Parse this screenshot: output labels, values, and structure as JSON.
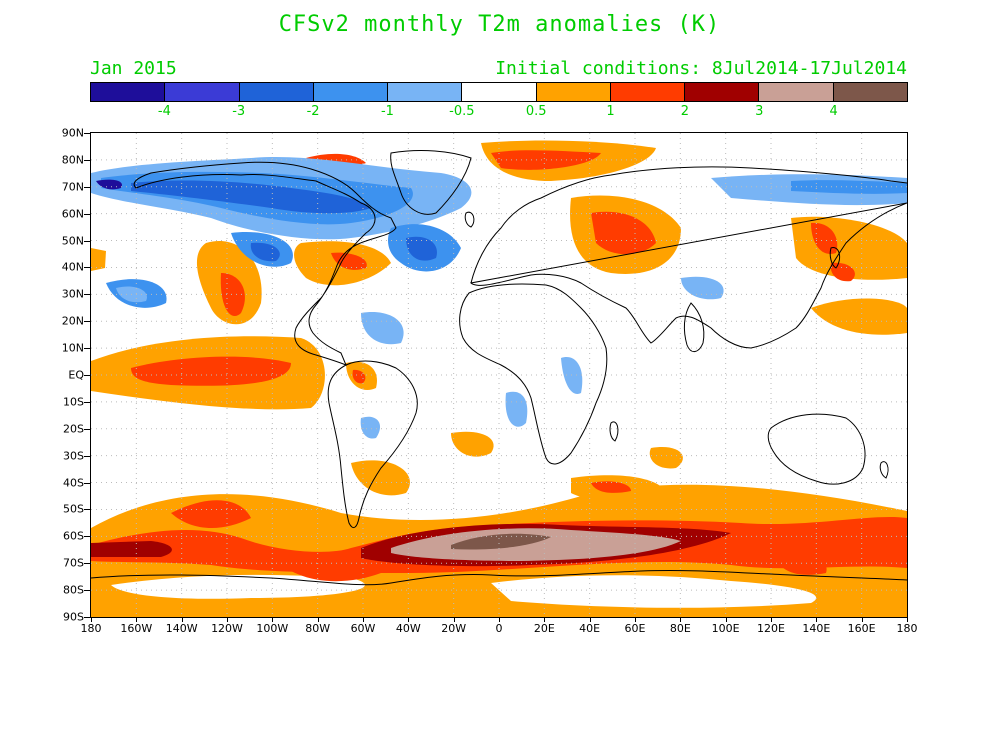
{
  "header": {
    "title": "CFSv2 monthly T2m anomalies (K)",
    "valid_month": "Jan 2015",
    "initial_conditions": "Initial conditions: 8Jul2014-17Jul2014",
    "text_color": "#00cc00"
  },
  "colorbar": {
    "colors": [
      "#1e0e9a",
      "#3b3bd6",
      "#1f63d8",
      "#3d92ef",
      "#78b4f5",
      "#ffffff",
      "#ffa200",
      "#ff3c00",
      "#a00000",
      "#c9a096",
      "#7d574a"
    ],
    "labels": [
      "-4",
      "-3",
      "-2",
      "-1",
      "-0.5",
      "0.5",
      "1",
      "2",
      "3",
      "4"
    ]
  },
  "map": {
    "latitude_labels": [
      "90N",
      "80N",
      "70N",
      "60N",
      "50N",
      "40N",
      "30N",
      "20N",
      "10N",
      "EQ",
      "10S",
      "20S",
      "30S",
      "40S",
      "50S",
      "60S",
      "70S",
      "80S",
      "90S"
    ],
    "longitude_labels": [
      "180",
      "160W",
      "140W",
      "120W",
      "100W",
      "80W",
      "60W",
      "40W",
      "20W",
      "0",
      "20E",
      "40E",
      "60E",
      "80E",
      "100E",
      "120E",
      "140E",
      "160E",
      "180"
    ],
    "projection": "lat-lon",
    "grid": "dotted"
  }
}
